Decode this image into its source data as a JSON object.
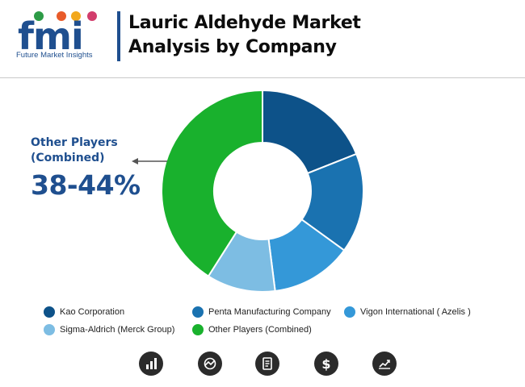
{
  "header": {
    "logo_text": "fmi",
    "logo_subtitle": "Future Market Insights",
    "title_line1": "Lauric Aldehyde Market",
    "title_line2": "Analysis by Company"
  },
  "callout": {
    "label": "Other Players (Combined)",
    "value": "38-44%"
  },
  "chart_data": {
    "type": "pie",
    "donut": true,
    "categories": [
      "Kao Corporation",
      "Penta Manufacturing Company",
      "Vigon International ( Azelis )",
      "Sigma-Aldrich (Merck Group)",
      "Other Players (Combined)"
    ],
    "values": [
      19,
      16,
      13,
      11,
      41
    ],
    "colors": [
      "#0d5289",
      "#1a72b0",
      "#3498d8",
      "#7dbde3",
      "#19b12d"
    ],
    "legend_position": "bottom"
  },
  "legend": [
    {
      "label": "Kao Corporation",
      "color": "#0d5289"
    },
    {
      "label": "Penta Manufacturing Company",
      "color": "#1a72b0"
    },
    {
      "label": "Vigon International ( Azelis )",
      "color": "#3498d8"
    },
    {
      "label": "Sigma-Aldrich (Merck Group)",
      "color": "#7dbde3"
    },
    {
      "label": "Other Players (Combined)",
      "color": "#19b12d"
    }
  ],
  "footer_icons": [
    "bar-chart-icon",
    "analysis-chart-icon",
    "document-icon",
    "dollar-icon",
    "growth-chart-icon"
  ]
}
